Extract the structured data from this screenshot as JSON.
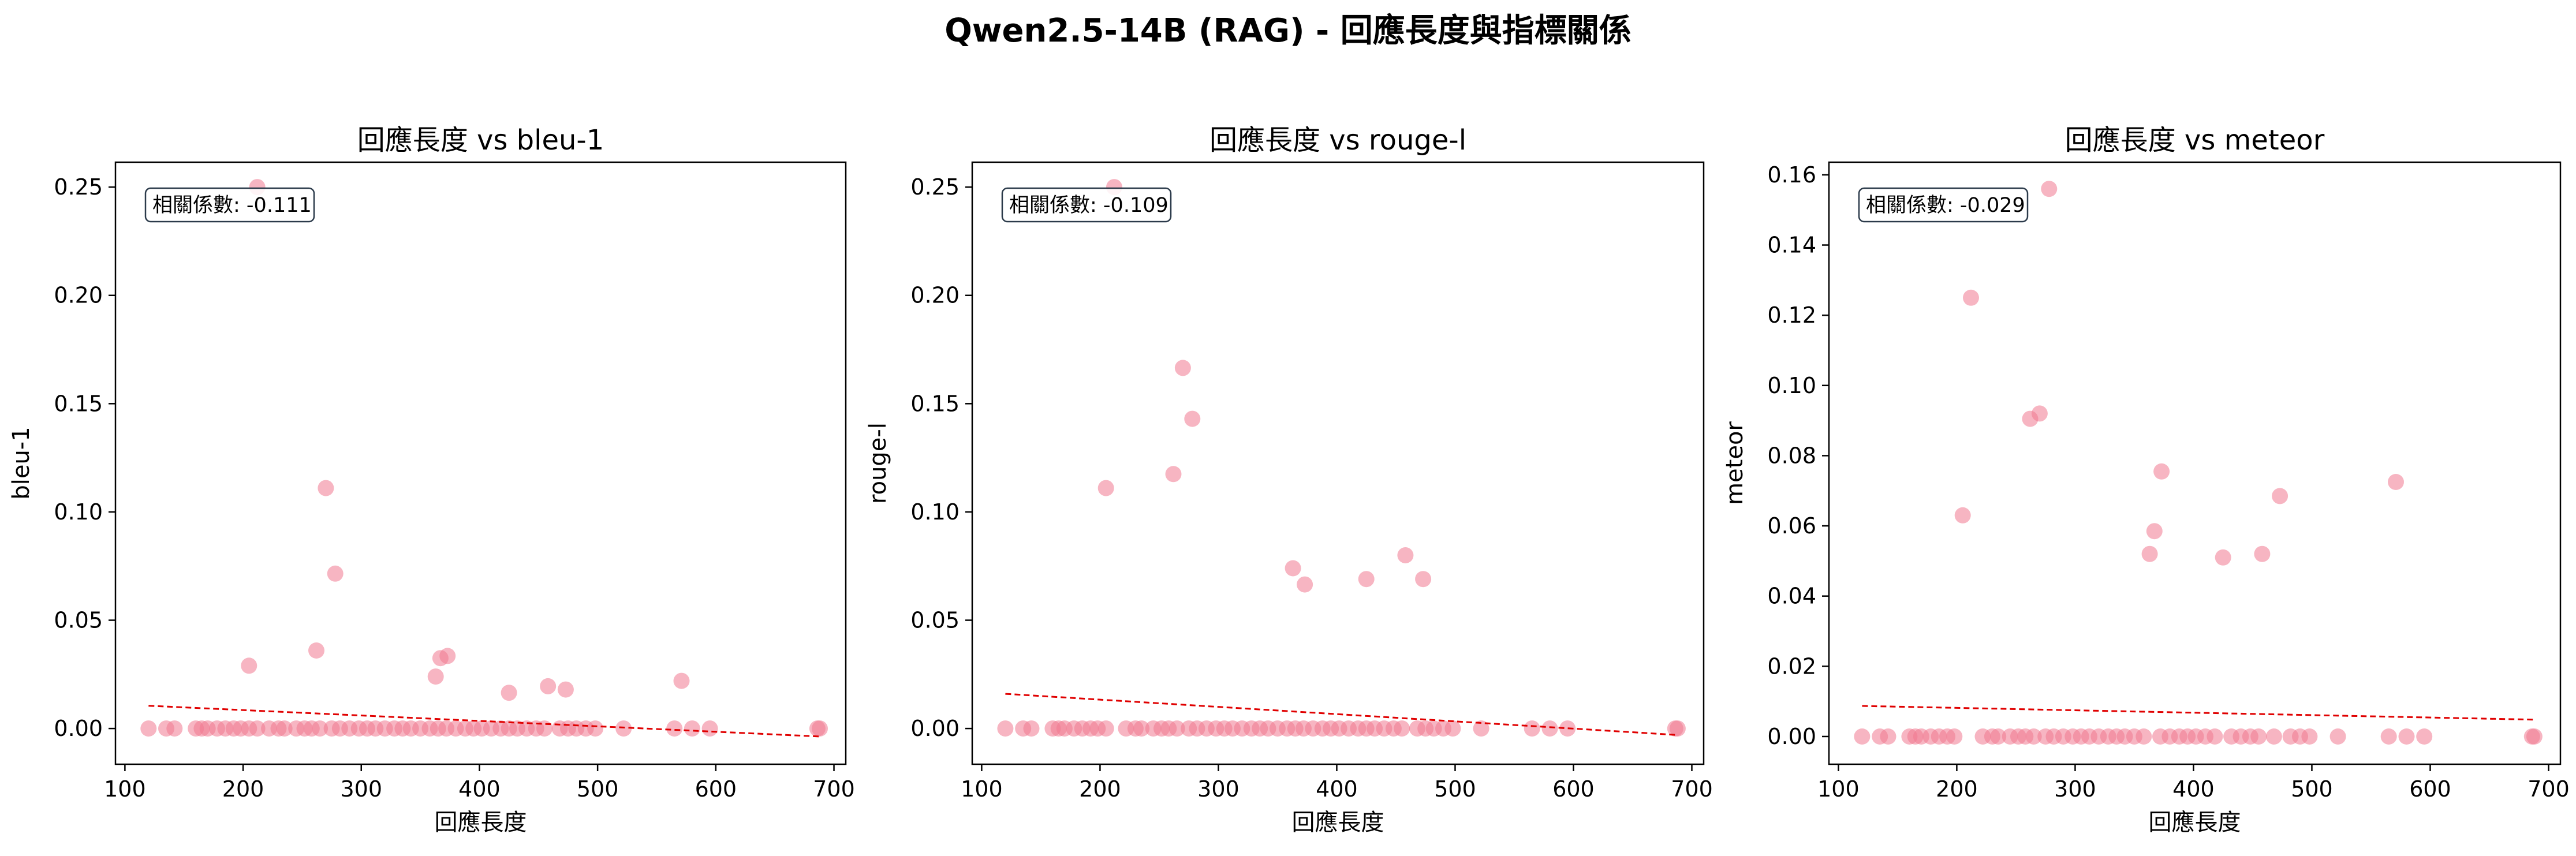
{
  "suptitle": "Qwen2.5-14B (RAG) - 回應長度與指標關係",
  "colors": {
    "point": "#f07890",
    "trend": "#e00000",
    "frame": "#000000",
    "box_edge": "#2b3a4a"
  },
  "chart_data": [
    {
      "type": "scatter",
      "title": "回應長度 vs bleu-1",
      "xlabel": "回應長度",
      "ylabel": "bleu-1",
      "xlim": [
        92,
        710
      ],
      "ylim": [
        -0.0165,
        0.2615
      ],
      "xticks": [
        100,
        200,
        300,
        400,
        500,
        600,
        700
      ],
      "yticks": [
        0.0,
        0.05,
        0.1,
        0.15,
        0.2,
        0.25
      ],
      "ytick_labels": [
        "0.00",
        "0.05",
        "0.10",
        "0.15",
        "0.20",
        "0.25"
      ],
      "annotation": "相關係數: -0.111",
      "trend": {
        "x": [
          120,
          688
        ],
        "y": [
          0.0105,
          -0.0037
        ]
      },
      "points": [
        [
          120,
          0
        ],
        [
          135,
          0
        ],
        [
          142,
          0
        ],
        [
          160,
          0
        ],
        [
          165,
          0
        ],
        [
          170,
          0
        ],
        [
          178,
          0
        ],
        [
          185,
          0
        ],
        [
          192,
          0
        ],
        [
          198,
          0
        ],
        [
          205,
          0
        ],
        [
          212,
          0
        ],
        [
          222,
          0
        ],
        [
          230,
          0
        ],
        [
          235,
          0
        ],
        [
          245,
          0
        ],
        [
          252,
          0
        ],
        [
          258,
          0
        ],
        [
          265,
          0
        ],
        [
          275,
          0
        ],
        [
          282,
          0
        ],
        [
          290,
          0
        ],
        [
          298,
          0
        ],
        [
          305,
          0
        ],
        [
          312,
          0
        ],
        [
          320,
          0
        ],
        [
          328,
          0
        ],
        [
          335,
          0
        ],
        [
          342,
          0
        ],
        [
          350,
          0
        ],
        [
          358,
          0
        ],
        [
          365,
          0
        ],
        [
          372,
          0
        ],
        [
          380,
          0
        ],
        [
          388,
          0
        ],
        [
          395,
          0
        ],
        [
          402,
          0
        ],
        [
          410,
          0
        ],
        [
          418,
          0
        ],
        [
          425,
          0
        ],
        [
          432,
          0
        ],
        [
          440,
          0
        ],
        [
          448,
          0
        ],
        [
          455,
          0
        ],
        [
          468,
          0
        ],
        [
          475,
          0
        ],
        [
          482,
          0
        ],
        [
          490,
          0
        ],
        [
          498,
          0
        ],
        [
          522,
          0
        ],
        [
          565,
          0
        ],
        [
          580,
          0
        ],
        [
          595,
          0
        ],
        [
          686,
          0
        ],
        [
          688,
          0
        ],
        [
          205,
          0.029
        ],
        [
          212,
          0.25
        ],
        [
          262,
          0.036
        ],
        [
          270,
          0.111
        ],
        [
          278,
          0.0715
        ],
        [
          363,
          0.024
        ],
        [
          367,
          0.0325
        ],
        [
          373,
          0.0335
        ],
        [
          425,
          0.0165
        ],
        [
          458,
          0.0195
        ],
        [
          473,
          0.018
        ],
        [
          571,
          0.022
        ]
      ]
    },
    {
      "type": "scatter",
      "title": "回應長度 vs rouge-l",
      "xlabel": "回應長度",
      "ylabel": "rouge-l",
      "xlim": [
        92,
        710
      ],
      "ylim": [
        -0.0165,
        0.2615
      ],
      "xticks": [
        100,
        200,
        300,
        400,
        500,
        600,
        700
      ],
      "yticks": [
        0.0,
        0.05,
        0.1,
        0.15,
        0.2,
        0.25
      ],
      "ytick_labels": [
        "0.00",
        "0.05",
        "0.10",
        "0.15",
        "0.20",
        "0.25"
      ],
      "annotation": "相關係數: -0.109",
      "trend": {
        "x": [
          120,
          688
        ],
        "y": [
          0.016,
          -0.003
        ]
      },
      "points": [
        [
          120,
          0
        ],
        [
          135,
          0
        ],
        [
          142,
          0
        ],
        [
          160,
          0
        ],
        [
          165,
          0
        ],
        [
          170,
          0
        ],
        [
          178,
          0
        ],
        [
          185,
          0
        ],
        [
          192,
          0
        ],
        [
          198,
          0
        ],
        [
          205,
          0
        ],
        [
          222,
          0
        ],
        [
          230,
          0
        ],
        [
          235,
          0
        ],
        [
          245,
          0
        ],
        [
          252,
          0
        ],
        [
          258,
          0
        ],
        [
          265,
          0
        ],
        [
          275,
          0
        ],
        [
          282,
          0
        ],
        [
          290,
          0
        ],
        [
          298,
          0
        ],
        [
          305,
          0
        ],
        [
          312,
          0
        ],
        [
          320,
          0
        ],
        [
          328,
          0
        ],
        [
          335,
          0
        ],
        [
          342,
          0
        ],
        [
          350,
          0
        ],
        [
          358,
          0
        ],
        [
          365,
          0
        ],
        [
          372,
          0
        ],
        [
          380,
          0
        ],
        [
          388,
          0
        ],
        [
          395,
          0
        ],
        [
          402,
          0
        ],
        [
          410,
          0
        ],
        [
          418,
          0
        ],
        [
          425,
          0
        ],
        [
          432,
          0
        ],
        [
          440,
          0
        ],
        [
          448,
          0
        ],
        [
          455,
          0
        ],
        [
          468,
          0
        ],
        [
          475,
          0
        ],
        [
          482,
          0
        ],
        [
          490,
          0
        ],
        [
          498,
          0
        ],
        [
          522,
          0
        ],
        [
          565,
          0
        ],
        [
          580,
          0
        ],
        [
          595,
          0
        ],
        [
          686,
          0
        ],
        [
          688,
          0
        ],
        [
          205,
          0.111
        ],
        [
          212,
          0.25
        ],
        [
          262,
          0.1175
        ],
        [
          270,
          0.1665
        ],
        [
          278,
          0.143
        ],
        [
          363,
          0.074
        ],
        [
          373,
          0.0665
        ],
        [
          425,
          0.069
        ],
        [
          458,
          0.08
        ],
        [
          473,
          0.069
        ]
      ]
    },
    {
      "type": "scatter",
      "title": "回應長度 vs meteor",
      "xlabel": "回應長度",
      "ylabel": "meteor",
      "xlim": [
        92,
        710
      ],
      "ylim": [
        -0.0079,
        0.1636
      ],
      "xticks": [
        100,
        200,
        300,
        400,
        500,
        600,
        700
      ],
      "yticks": [
        0.0,
        0.02,
        0.04,
        0.06,
        0.08,
        0.1,
        0.12,
        0.14,
        0.16
      ],
      "ytick_labels": [
        "0.00",
        "0.02",
        "0.04",
        "0.06",
        "0.08",
        "0.10",
        "0.12",
        "0.14",
        "0.16"
      ],
      "annotation": "相關係數: -0.029",
      "trend": {
        "x": [
          120,
          688
        ],
        "y": [
          0.0087,
          0.0048
        ]
      },
      "points": [
        [
          120,
          0
        ],
        [
          135,
          0
        ],
        [
          142,
          0
        ],
        [
          160,
          0
        ],
        [
          165,
          0
        ],
        [
          170,
          0
        ],
        [
          178,
          0
        ],
        [
          185,
          0
        ],
        [
          192,
          0
        ],
        [
          198,
          0
        ],
        [
          222,
          0
        ],
        [
          230,
          0
        ],
        [
          235,
          0
        ],
        [
          245,
          0
        ],
        [
          252,
          0
        ],
        [
          258,
          0
        ],
        [
          265,
          0
        ],
        [
          275,
          0
        ],
        [
          282,
          0
        ],
        [
          290,
          0
        ],
        [
          298,
          0
        ],
        [
          305,
          0
        ],
        [
          312,
          0
        ],
        [
          320,
          0
        ],
        [
          328,
          0
        ],
        [
          335,
          0
        ],
        [
          342,
          0
        ],
        [
          350,
          0
        ],
        [
          358,
          0
        ],
        [
          372,
          0
        ],
        [
          380,
          0
        ],
        [
          388,
          0
        ],
        [
          395,
          0
        ],
        [
          402,
          0
        ],
        [
          410,
          0
        ],
        [
          418,
          0
        ],
        [
          432,
          0
        ],
        [
          440,
          0
        ],
        [
          448,
          0
        ],
        [
          455,
          0
        ],
        [
          468,
          0
        ],
        [
          482,
          0
        ],
        [
          490,
          0
        ],
        [
          498,
          0
        ],
        [
          522,
          0
        ],
        [
          565,
          0
        ],
        [
          580,
          0
        ],
        [
          595,
          0
        ],
        [
          686,
          0
        ],
        [
          688,
          0
        ],
        [
          205,
          0.063
        ],
        [
          212,
          0.125
        ],
        [
          262,
          0.0905
        ],
        [
          270,
          0.092
        ],
        [
          278,
          0.156
        ],
        [
          363,
          0.052
        ],
        [
          367,
          0.0585
        ],
        [
          373,
          0.0755
        ],
        [
          425,
          0.051
        ],
        [
          458,
          0.052
        ],
        [
          473,
          0.0685
        ],
        [
          571,
          0.0725
        ]
      ]
    }
  ]
}
